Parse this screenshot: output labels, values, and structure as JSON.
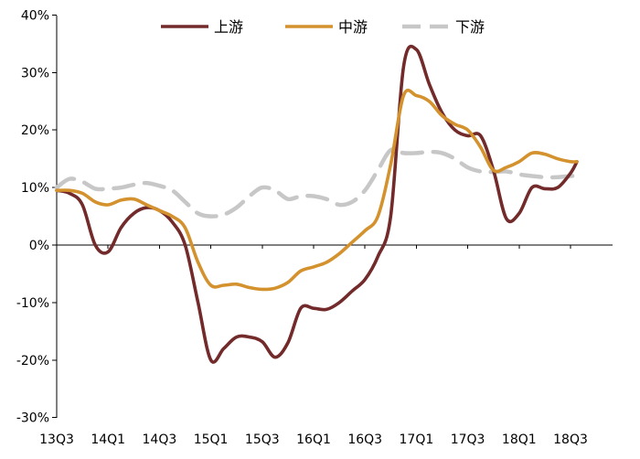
{
  "chart_data": {
    "type": "line",
    "title": "",
    "xlabel": "",
    "ylabel": "",
    "ylim": [
      -30,
      40
    ],
    "yticks": [
      -30,
      -20,
      -10,
      0,
      10,
      20,
      30,
      40
    ],
    "ytick_labels": [
      "-30%",
      "-20%",
      "-10%",
      "0%",
      "10%",
      "20%",
      "30%",
      "40%"
    ],
    "x_range": [
      0,
      20.25
    ],
    "xticks": [
      0,
      2,
      4,
      6,
      8,
      10,
      12,
      14,
      16,
      18,
      20
    ],
    "xtick_labels": [
      "13Q3",
      "14Q1",
      "14Q3",
      "15Q1",
      "15Q3",
      "16Q1",
      "16Q3",
      "17Q1",
      "17Q3",
      "18Q1",
      "18Q3"
    ],
    "grid": false,
    "legend_position": "top",
    "series": [
      {
        "name": "上游",
        "color": "#722a2a",
        "dash": "solid",
        "points": [
          [
            0,
            9.5
          ],
          [
            0.5,
            9
          ],
          [
            1,
            7
          ],
          [
            1.5,
            0
          ],
          [
            2,
            -1.2
          ],
          [
            2.5,
            3
          ],
          [
            3,
            5.5
          ],
          [
            3.5,
            6.5
          ],
          [
            4,
            6
          ],
          [
            4.5,
            4
          ],
          [
            5,
            0
          ],
          [
            5.5,
            -10
          ],
          [
            6,
            -20
          ],
          [
            6.5,
            -18
          ],
          [
            7,
            -16
          ],
          [
            7.5,
            -16
          ],
          [
            8,
            -16.8
          ],
          [
            8.5,
            -19.5
          ],
          [
            9,
            -17
          ],
          [
            9.5,
            -11
          ],
          [
            10,
            -11
          ],
          [
            10.5,
            -11.2
          ],
          [
            11,
            -10
          ],
          [
            11.5,
            -8
          ],
          [
            12,
            -6
          ],
          [
            12.5,
            -2
          ],
          [
            13,
            5
          ],
          [
            13.5,
            31
          ],
          [
            14,
            34
          ],
          [
            14.5,
            28
          ],
          [
            15,
            23
          ],
          [
            15.5,
            20
          ],
          [
            16,
            19
          ],
          [
            16.5,
            19
          ],
          [
            17,
            13
          ],
          [
            17.5,
            4.6
          ],
          [
            18,
            5.5
          ],
          [
            18.5,
            10
          ],
          [
            19,
            9.8
          ],
          [
            19.5,
            10
          ],
          [
            20,
            12.5
          ],
          [
            20.25,
            14.5
          ]
        ]
      },
      {
        "name": "中游",
        "color": "#d4922e",
        "dash": "solid",
        "points": [
          [
            0,
            9.5
          ],
          [
            0.5,
            9.5
          ],
          [
            1,
            9
          ],
          [
            1.5,
            7.5
          ],
          [
            2,
            7
          ],
          [
            2.5,
            7.8
          ],
          [
            3,
            8
          ],
          [
            3.5,
            7
          ],
          [
            4,
            6
          ],
          [
            4.5,
            5
          ],
          [
            5,
            3
          ],
          [
            5.5,
            -3
          ],
          [
            6,
            -7
          ],
          [
            6.5,
            -7
          ],
          [
            7,
            -6.8
          ],
          [
            7.5,
            -7.4
          ],
          [
            8,
            -7.7
          ],
          [
            8.5,
            -7.5
          ],
          [
            9,
            -6.5
          ],
          [
            9.5,
            -4.5
          ],
          [
            10,
            -3.8
          ],
          [
            10.5,
            -3
          ],
          [
            11,
            -1.5
          ],
          [
            11.5,
            0.5
          ],
          [
            12,
            2.5
          ],
          [
            12.5,
            5
          ],
          [
            13,
            14
          ],
          [
            13.5,
            26
          ],
          [
            14,
            26
          ],
          [
            14.5,
            25
          ],
          [
            15,
            22.5
          ],
          [
            15.5,
            21
          ],
          [
            16,
            20
          ],
          [
            16.5,
            17
          ],
          [
            17,
            13
          ],
          [
            17.5,
            13.5
          ],
          [
            18,
            14.5
          ],
          [
            18.5,
            16
          ],
          [
            19,
            15.8
          ],
          [
            19.5,
            15
          ],
          [
            20,
            14.5
          ],
          [
            20.25,
            14.5
          ]
        ]
      },
      {
        "name": "下游",
        "color": "#c7c7c7",
        "dash": "dashed",
        "points": [
          [
            0,
            10
          ],
          [
            0.5,
            11.5
          ],
          [
            1,
            11
          ],
          [
            1.5,
            9.8
          ],
          [
            2,
            9.8
          ],
          [
            2.5,
            10
          ],
          [
            3,
            10.5
          ],
          [
            3.5,
            10.8
          ],
          [
            4,
            10.3
          ],
          [
            4.5,
            9.5
          ],
          [
            5,
            7.5
          ],
          [
            5.5,
            5.5
          ],
          [
            6,
            5
          ],
          [
            6.5,
            5.3
          ],
          [
            7,
            6.5
          ],
          [
            7.5,
            8.5
          ],
          [
            8,
            10
          ],
          [
            8.5,
            9.5
          ],
          [
            9,
            8
          ],
          [
            9.5,
            8.5
          ],
          [
            10,
            8.5
          ],
          [
            10.5,
            8
          ],
          [
            11,
            7
          ],
          [
            11.5,
            7.5
          ],
          [
            12,
            9.5
          ],
          [
            12.5,
            13
          ],
          [
            13,
            16.5
          ],
          [
            13.5,
            16
          ],
          [
            14,
            16
          ],
          [
            14.5,
            16.2
          ],
          [
            15,
            16
          ],
          [
            15.5,
            15
          ],
          [
            16,
            13.5
          ],
          [
            16.5,
            12.8
          ],
          [
            17,
            12.7
          ],
          [
            17.5,
            12.8
          ],
          [
            18,
            12.3
          ],
          [
            18.5,
            12
          ],
          [
            19,
            11.8
          ],
          [
            19.5,
            11.8
          ],
          [
            20,
            12
          ],
          [
            20.25,
            12
          ]
        ]
      }
    ]
  }
}
